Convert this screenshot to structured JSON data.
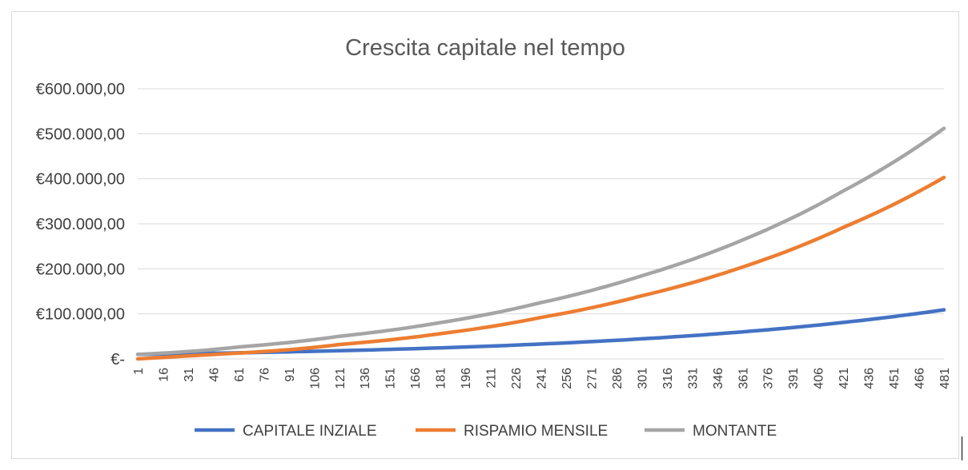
{
  "chart_data": {
    "type": "line",
    "title": "Crescita capitale nel tempo",
    "xlabel": "",
    "ylabel": "",
    "ylim": [
      0,
      600000
    ],
    "yticks": [
      0,
      100000,
      200000,
      300000,
      400000,
      500000,
      600000
    ],
    "ytick_labels": [
      "€-",
      "€100.000,00",
      "€200.000,00",
      "€300.000,00",
      "€400.000,00",
      "€500.000,00",
      "€600.000,00"
    ],
    "xlim": [
      1,
      481
    ],
    "x_ticks": [
      1,
      16,
      31,
      46,
      61,
      76,
      91,
      106,
      121,
      136,
      151,
      166,
      181,
      196,
      211,
      226,
      241,
      256,
      271,
      286,
      301,
      316,
      331,
      346,
      361,
      376,
      391,
      406,
      421,
      436,
      451,
      466,
      481
    ],
    "x": [
      1,
      61,
      121,
      181,
      241,
      301,
      361,
      421,
      481
    ],
    "grid": true,
    "legend_position": "bottom",
    "series": [
      {
        "name": "CAPITALE INZIALE",
        "color": "#4472C4",
        "values": [
          10000,
          13500,
          18200,
          24500,
          33000,
          44500,
          60000,
          81000,
          109000
        ]
      },
      {
        "name": "RISPAMIO MENSILE",
        "color": "#ED7D31",
        "values": [
          0,
          13000,
          32000,
          56000,
          92000,
          140000,
          204000,
          292000,
          403000
        ]
      },
      {
        "name": "MONTANTE",
        "color": "#A5A5A5",
        "values": [
          10000,
          26500,
          50200,
          80500,
          125000,
          184500,
          264000,
          373000,
          512000
        ]
      }
    ]
  }
}
